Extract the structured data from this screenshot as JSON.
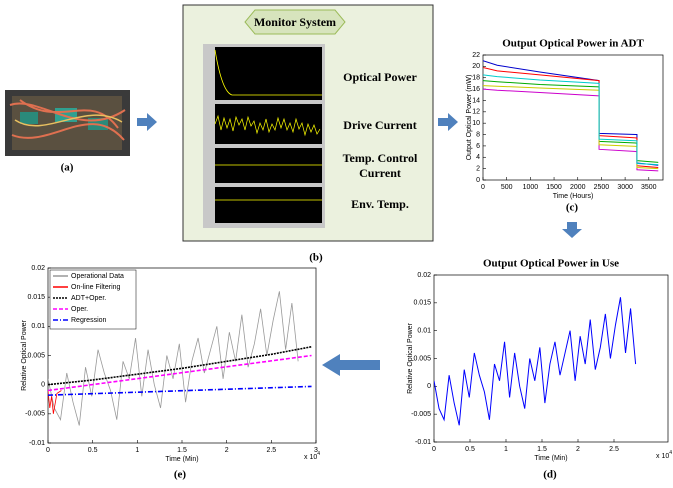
{
  "a": {
    "caption": "(a)"
  },
  "b": {
    "caption": "(b)",
    "title": "Monitor System",
    "items": [
      "Optical Power",
      "Drive Current",
      "Temp. Control Current",
      "Env. Temp."
    ]
  },
  "c": {
    "caption": "(c)",
    "title": "Output Optical Power in ADT",
    "xlabel": "Time (Hours)",
    "ylabel": "Output Optical Power (mW)",
    "xlim": [
      0,
      3800
    ],
    "ylim": [
      0,
      22
    ],
    "xticks": [
      0,
      500,
      1000,
      1500,
      2000,
      2500,
      3000,
      3500
    ],
    "yticks": [
      0,
      2,
      4,
      6,
      8,
      10,
      12,
      14,
      16,
      18,
      20,
      22
    ],
    "series": [
      {
        "color": "#0000cc",
        "x": [
          0,
          300,
          1200,
          2450,
          2450,
          3250,
          3250,
          3700
        ],
        "values": [
          21,
          20.2,
          19,
          17.5,
          8.2,
          8,
          3,
          2.6
        ]
      },
      {
        "color": "#ff0000",
        "x": [
          0,
          300,
          1200,
          2450,
          2450,
          3250,
          3250,
          3700
        ],
        "values": [
          19.8,
          19.2,
          18.5,
          17.5,
          7.8,
          7.4,
          2.5,
          2.2
        ]
      },
      {
        "color": "#00aa00",
        "x": [
          0,
          300,
          1200,
          2450,
          2450,
          3250,
          3250,
          3700
        ],
        "values": [
          17.5,
          17.3,
          16.8,
          16.4,
          6.8,
          6.5,
          3.4,
          3.1
        ]
      },
      {
        "color": "#cc00cc",
        "x": [
          0,
          300,
          1200,
          2450,
          2450,
          3250,
          3250,
          3700
        ],
        "values": [
          16,
          15.8,
          15.4,
          14.8,
          5.4,
          5,
          1.8,
          1.6
        ]
      },
      {
        "color": "#cccc00",
        "x": [
          0,
          300,
          1200,
          2450,
          2450,
          3250,
          3250,
          3700
        ],
        "values": [
          16.6,
          16.5,
          16.2,
          15.8,
          6.2,
          5.9,
          2.2,
          2
        ]
      },
      {
        "color": "#00cccc",
        "x": [
          0,
          300,
          1200,
          2450,
          2450,
          3250,
          3250,
          3700
        ],
        "values": [
          18.5,
          18.2,
          17.6,
          17,
          7.2,
          6.9,
          2.9,
          2.7
        ]
      }
    ]
  },
  "d": {
    "caption": "(d)",
    "title": "Output Optical Power in Use",
    "xlabel": "Time (Min)",
    "ylabel": "Relative Optical Power",
    "multiplier": {
      "base": "x 10",
      "exp": "4"
    },
    "xlim": [
      0,
      3.25
    ],
    "ylim": [
      -0.01,
      0.02
    ],
    "xticks": [
      0,
      0.5,
      1,
      1.5,
      2,
      2.5
    ],
    "yticks": [
      -0.01,
      -0.005,
      0,
      0.005,
      0.01,
      0.015,
      0.02
    ],
    "series": [
      {
        "color": "#0000ff",
        "x": [
          0,
          0.07,
          0.14,
          0.21,
          0.28,
          0.35,
          0.42,
          0.49,
          0.56,
          0.63,
          0.7,
          0.77,
          0.84,
          0.91,
          0.98,
          1.05,
          1.12,
          1.19,
          1.26,
          1.33,
          1.4,
          1.47,
          1.54,
          1.61,
          1.68,
          1.75,
          1.82,
          1.89,
          1.96,
          2.03,
          2.1,
          2.17,
          2.24,
          2.31,
          2.38,
          2.45,
          2.52,
          2.59,
          2.66,
          2.73,
          2.8
        ],
        "values": [
          0.001,
          -0.004,
          -0.006,
          0.002,
          -0.003,
          -0.007,
          0.003,
          -0.002,
          0.006,
          0.002,
          -0.001,
          -0.006,
          0.004,
          0.001,
          0.008,
          -0.002,
          0.006,
          0,
          -0.004,
          0.005,
          0.001,
          0.007,
          -0.003,
          0.004,
          0.008,
          0.002,
          0.006,
          0.01,
          0.001,
          0.009,
          0.004,
          0.012,
          0.003,
          0.007,
          0.013,
          0.005,
          0.011,
          0.016,
          0.006,
          0.014,
          0.004
        ]
      }
    ]
  },
  "e": {
    "caption": "(e)",
    "xlabel": "Time (Min)",
    "ylabel": "Relative Optical Power",
    "multiplier": {
      "base": "x 10",
      "exp": "4"
    },
    "xlim": [
      0,
      3
    ],
    "ylim": [
      -0.01,
      0.02
    ],
    "xticks": [
      0,
      0.5,
      1,
      1.5,
      2,
      2.5,
      3
    ],
    "yticks": [
      -0.01,
      -0.005,
      0,
      0.005,
      0.01,
      0.015,
      0.02
    ],
    "series": [
      {
        "name": "Operational Data",
        "color": "#999999",
        "x": [
          0,
          0.07,
          0.14,
          0.21,
          0.28,
          0.35,
          0.42,
          0.49,
          0.56,
          0.63,
          0.7,
          0.77,
          0.84,
          0.91,
          0.98,
          1.05,
          1.12,
          1.19,
          1.26,
          1.33,
          1.4,
          1.47,
          1.54,
          1.61,
          1.68,
          1.75,
          1.82,
          1.89,
          1.96,
          2.03,
          2.1,
          2.17,
          2.24,
          2.31,
          2.38,
          2.45,
          2.52,
          2.59,
          2.66,
          2.73,
          2.8
        ],
        "values": [
          0.001,
          -0.004,
          -0.006,
          0.002,
          -0.003,
          -0.007,
          0.003,
          -0.002,
          0.006,
          0.002,
          -0.001,
          -0.006,
          0.004,
          0.001,
          0.008,
          -0.002,
          0.006,
          0,
          -0.004,
          0.005,
          0.001,
          0.007,
          -0.003,
          0.004,
          0.008,
          0.002,
          0.006,
          0.01,
          0.001,
          0.009,
          0.004,
          0.012,
          0.003,
          0.007,
          0.013,
          0.005,
          0.011,
          0.016,
          0.006,
          0.014,
          0.004
        ]
      },
      {
        "name": "On-line Filtering",
        "color": "#ff0000",
        "x": [
          0,
          0.02,
          0.04,
          0.06,
          0.1,
          0.15
        ],
        "values": [
          -0.001,
          -0.004,
          -0.002,
          -0.005,
          -0.0015,
          -0.001
        ]
      },
      {
        "name": "ADT+Oper.",
        "color": "#000000",
        "dash": "2 1",
        "x": [
          0,
          0.5,
          1,
          1.5,
          2,
          2.5,
          2.95
        ],
        "values": [
          0,
          0.0008,
          0.0018,
          0.0028,
          0.004,
          0.0052,
          0.0065
        ]
      },
      {
        "name": "Oper.",
        "color": "#ff00ff",
        "dash": "4 2",
        "x": [
          0,
          2.95
        ],
        "values": [
          -0.001,
          0.005
        ]
      },
      {
        "name": "Regression",
        "color": "#0000ff",
        "dash": "5 2 1 2",
        "x": [
          0,
          2.95
        ],
        "values": [
          -0.0018,
          -0.0003
        ]
      }
    ]
  }
}
